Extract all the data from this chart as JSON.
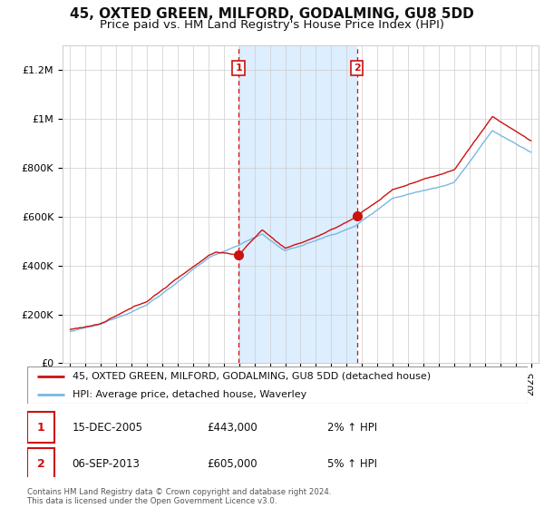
{
  "title": "45, OXTED GREEN, MILFORD, GODALMING, GU8 5DD",
  "subtitle": "Price paid vs. HM Land Registry's House Price Index (HPI)",
  "ylim": [
    0,
    1300000
  ],
  "yticks": [
    0,
    200000,
    400000,
    600000,
    800000,
    1000000,
    1200000
  ],
  "ytick_labels": [
    "£0",
    "£200K",
    "£400K",
    "£600K",
    "£800K",
    "£1M",
    "£1.2M"
  ],
  "xmin": 1994.5,
  "xmax": 2025.5,
  "sale_dates": [
    2005.96,
    2013.68
  ],
  "sale_prices": [
    443000,
    605000
  ],
  "marker_labels": [
    "1",
    "2"
  ],
  "annotation1_date": "15-DEC-2005",
  "annotation1_price": "£443,000",
  "annotation1_hpi": "2% ↑ HPI",
  "annotation2_date": "06-SEP-2013",
  "annotation2_price": "£605,000",
  "annotation2_hpi": "5% ↑ HPI",
  "hpi_line_color": "#7ab8e0",
  "price_line_color": "#cc1111",
  "marker_dot_color": "#cc1111",
  "highlight_color": "#ddeeff",
  "dashed_line_color": "#cc1111",
  "background_color": "#ffffff",
  "grid_color": "#cccccc",
  "legend_label_price": "45, OXTED GREEN, MILFORD, GODALMING, GU8 5DD (detached house)",
  "legend_label_hpi": "HPI: Average price, detached house, Waverley",
  "footnote": "Contains HM Land Registry data © Crown copyright and database right 2024.\nThis data is licensed under the Open Government Licence v3.0.",
  "title_fontsize": 11,
  "subtitle_fontsize": 9.5,
  "tick_fontsize": 8,
  "legend_fontsize": 8,
  "annot_fontsize": 8.5
}
